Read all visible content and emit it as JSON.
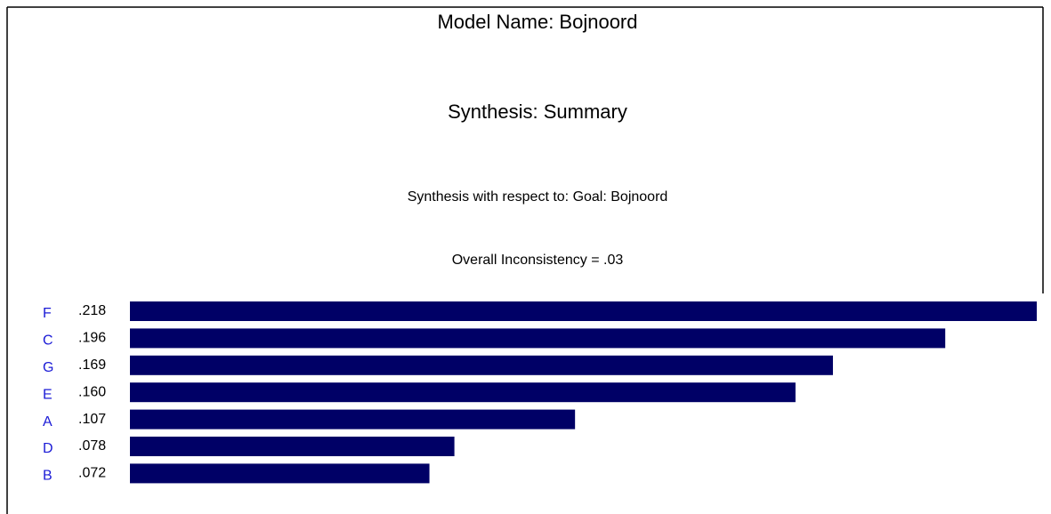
{
  "chart_data": {
    "type": "bar",
    "orientation": "horizontal",
    "title": "Model Name: Bojnoord",
    "subtitle": "Synthesis: Summary",
    "annotations": [
      "Synthesis with respect to: Goal: Bojnoord",
      "Overall Inconsistency = .03"
    ],
    "categories": [
      "F",
      "C",
      "G",
      "E",
      "A",
      "D",
      "B"
    ],
    "values": [
      0.218,
      0.196,
      0.169,
      0.16,
      0.107,
      0.078,
      0.072
    ],
    "value_labels": [
      ".218",
      ".196",
      ".169",
      ".160",
      ".107",
      ".078",
      ".072"
    ],
    "color": "#000066",
    "label_color": "#1a1ad6"
  }
}
